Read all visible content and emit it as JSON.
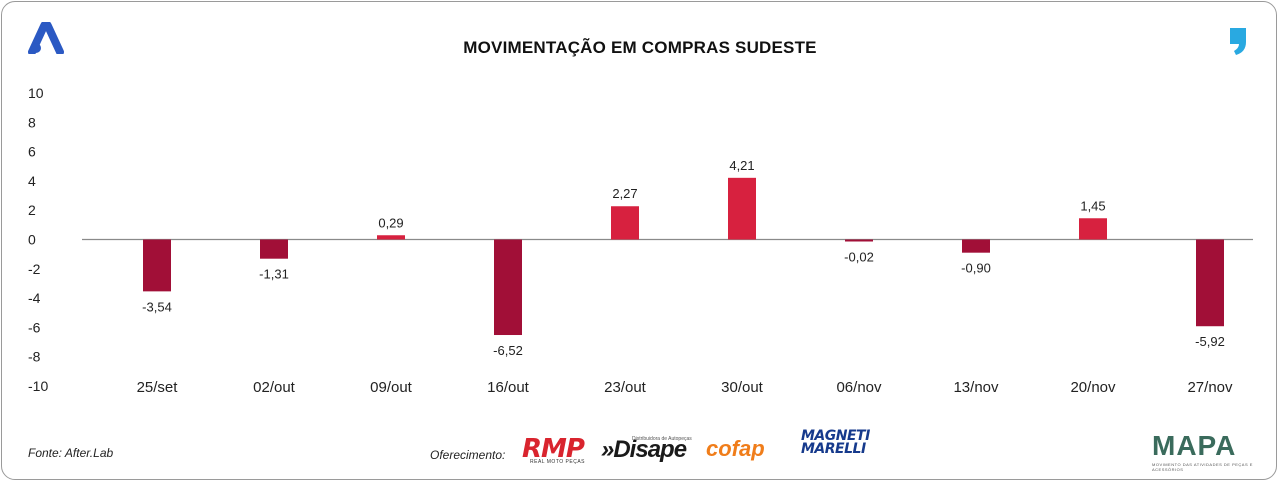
{
  "header": {
    "title": "MOVIMENTAÇÃO EM COMPRAS SUDESTE"
  },
  "footer": {
    "source": "Fonte: After.Lab",
    "offer_label": "Oferecimento:",
    "sponsors": {
      "rmp": "RMP",
      "rmp_sub": "REAL MOTO PEÇAS",
      "disape": "»Disape",
      "disape_sub": "Distribuidora de Autopeças",
      "cofap": "cofap",
      "magneti_line1": "MAGNETI",
      "magneti_line2": "MARELLI"
    },
    "mapa": "MAPA",
    "mapa_sub": "MOVIMENTO DAS ATIVIDADES DE PEÇAS E ACESSÓRIOS"
  },
  "colors": {
    "positive": "#d7213f",
    "negative": "#a10f37",
    "axis": "#8a8a8a"
  },
  "chart_data": {
    "type": "bar",
    "title": "MOVIMENTAÇÃO EM COMPRAS SUDESTE",
    "xlabel": "",
    "ylabel": "",
    "ylim": [
      -10,
      10
    ],
    "yticks": [
      10,
      8,
      6,
      4,
      2,
      0,
      -2,
      -4,
      -6,
      -8,
      -10
    ],
    "categories": [
      "25/set",
      "02/out",
      "09/out",
      "16/out",
      "23/out",
      "30/out",
      "06/nov",
      "13/nov",
      "20/nov",
      "27/nov"
    ],
    "values": [
      -3.54,
      -1.31,
      0.29,
      -6.52,
      2.27,
      4.21,
      -0.02,
      -0.9,
      1.45,
      -5.92
    ],
    "value_labels": [
      "-3,54",
      "-1,31",
      "0,29",
      "-6,52",
      "2,27",
      "4,21",
      "-0,02",
      "-0,90",
      "1,45",
      "-5,92"
    ],
    "grid": false,
    "legend": "none"
  }
}
